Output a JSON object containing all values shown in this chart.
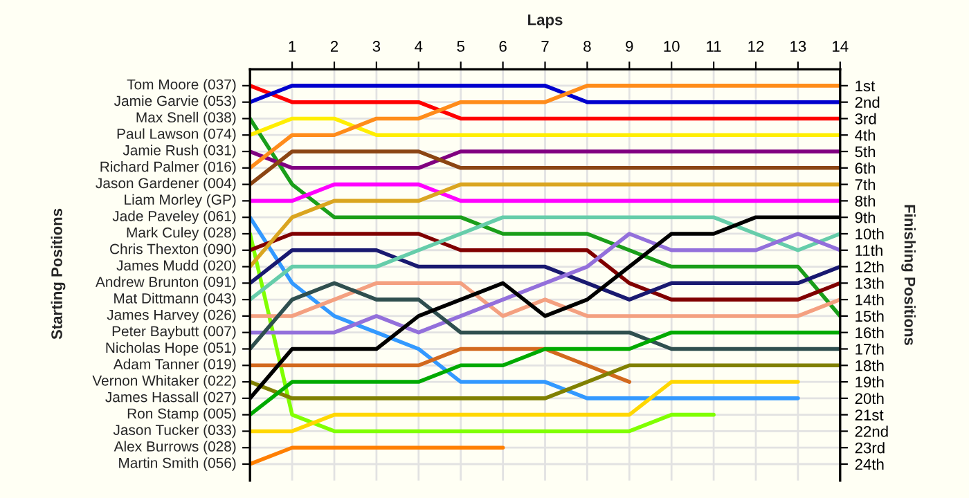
{
  "chart_data": {
    "type": "line",
    "xlabel": "Laps",
    "ylabel": "Finishing Positions",
    "x": [
      0,
      1,
      2,
      3,
      4,
      5,
      6,
      7,
      8,
      9,
      10,
      11,
      12,
      13,
      14
    ],
    "xlim": [
      0,
      14
    ],
    "xticks": [
      1,
      2,
      3,
      4,
      5,
      6,
      7,
      8,
      9,
      10,
      11,
      12,
      13,
      14
    ],
    "ylim": [
      25,
      0
    ],
    "yticks": [
      {
        "value": 1,
        "label": "1st"
      },
      {
        "value": 2,
        "label": "2nd"
      },
      {
        "value": 3,
        "label": "3rd"
      },
      {
        "value": 4,
        "label": "4th"
      },
      {
        "value": 5,
        "label": "5th"
      },
      {
        "value": 6,
        "label": "6th"
      },
      {
        "value": 7,
        "label": "7th"
      },
      {
        "value": 8,
        "label": "8th"
      },
      {
        "value": 9,
        "label": "9th"
      },
      {
        "value": 10,
        "label": "10th"
      },
      {
        "value": 11,
        "label": "11th"
      },
      {
        "value": 12,
        "label": "12th"
      },
      {
        "value": 13,
        "label": "13th"
      },
      {
        "value": 14,
        "label": "14th"
      },
      {
        "value": 15,
        "label": "15th"
      },
      {
        "value": 16,
        "label": "16th"
      },
      {
        "value": 17,
        "label": "17th"
      },
      {
        "value": 18,
        "label": "18th"
      },
      {
        "value": 19,
        "label": "19th"
      },
      {
        "value": 20,
        "label": "20th"
      },
      {
        "value": 21,
        "label": "21st"
      },
      {
        "value": 22,
        "label": "22nd"
      },
      {
        "value": 23,
        "label": "23rd"
      },
      {
        "value": 24,
        "label": "24th"
      }
    ],
    "annotations": [
      "Starting Positions",
      "Tom Moore (037)",
      "Jamie Garvie (053)",
      "Max Snell (038)",
      "Paul Lawson (074)",
      "Jamie Rush (031)",
      "Richard Palmer (016)",
      "Jason Gardener (004)",
      "Liam Morley (GP)",
      "Jade Paveley (061)",
      "Mark Culey (028)",
      "Chris Thexton (090)",
      "James Mudd (020)",
      "Andrew Brunton (091)",
      "Mat Dittmann (043)",
      "James Harvey (026)",
      "Peter Baybutt (007)",
      "Nicholas Hope (051)",
      "Adam Tanner (019)",
      "Vernon Whitaker (022)",
      "James Hassall (027)",
      "Ron Stamp (005)",
      "Jason Tucker (033)",
      "Alex Burrows (028)",
      "Martin Smith (056)"
    ],
    "grid": true,
    "series": [
      {
        "color": "#ff0000",
        "values": [
          1,
          2,
          2,
          2,
          2,
          3,
          3,
          3,
          3,
          3,
          3,
          3,
          3,
          3,
          3
        ]
      },
      {
        "color": "#0000cd",
        "values": [
          2,
          1,
          1,
          1,
          1,
          1,
          1,
          1,
          2,
          2,
          2,
          2,
          2,
          2,
          2
        ]
      },
      {
        "color": "#1a9e1a",
        "values": [
          3,
          7,
          9,
          9,
          9,
          9,
          10,
          10,
          10,
          11,
          12,
          12,
          12,
          12,
          15
        ]
      },
      {
        "color": "#ffee00",
        "values": [
          4,
          3,
          3,
          4,
          4,
          4,
          4,
          4,
          4,
          4,
          4,
          4,
          4,
          4,
          4
        ]
      },
      {
        "color": "#800080",
        "values": [
          5,
          6,
          6,
          6,
          6,
          5,
          5,
          5,
          5,
          5,
          5,
          5,
          5,
          5,
          5
        ]
      },
      {
        "color": "#ff8c1a",
        "values": [
          6,
          4,
          4,
          3,
          3,
          2,
          2,
          2,
          1,
          1,
          1,
          1,
          1,
          1,
          1
        ]
      },
      {
        "color": "#8b4513",
        "values": [
          7,
          5,
          5,
          5,
          5,
          6,
          6,
          6,
          6,
          6,
          6,
          6,
          6,
          6,
          6
        ]
      },
      {
        "color": "#ff00ff",
        "values": [
          8,
          8,
          7,
          7,
          7,
          8,
          8,
          8,
          8,
          8,
          8,
          8,
          8,
          8,
          8
        ]
      },
      {
        "color": "#3399ff",
        "values": [
          9,
          13,
          15,
          16,
          17,
          19,
          19,
          19,
          20,
          20,
          20,
          20,
          20,
          20,
          null
        ]
      },
      {
        "color": "#80ff00",
        "values": [
          10,
          21,
          22,
          22,
          22,
          22,
          22,
          22,
          22,
          22,
          21,
          21,
          null,
          null,
          null
        ]
      },
      {
        "color": "#800000",
        "values": [
          11,
          10,
          10,
          10,
          10,
          11,
          11,
          11,
          11,
          13,
          14,
          14,
          14,
          14,
          13
        ]
      },
      {
        "color": "#daa520",
        "values": [
          12,
          9,
          8,
          8,
          8,
          7,
          7,
          7,
          7,
          7,
          7,
          7,
          7,
          7,
          7
        ]
      },
      {
        "color": "#191970",
        "values": [
          13,
          11,
          11,
          11,
          12,
          12,
          12,
          12,
          13,
          14,
          13,
          13,
          13,
          13,
          12
        ]
      },
      {
        "color": "#66cdaa",
        "values": [
          14,
          12,
          12,
          12,
          11,
          10,
          9,
          9,
          9,
          9,
          9,
          9,
          10,
          11,
          10
        ]
      },
      {
        "color": "#f4a080",
        "values": [
          15,
          15,
          14,
          13,
          13,
          13,
          15,
          14,
          15,
          15,
          15,
          15,
          15,
          15,
          14
        ]
      },
      {
        "color": "#9370db",
        "values": [
          16,
          16,
          16,
          15,
          16,
          15,
          14,
          13,
          12,
          10,
          11,
          11,
          11,
          10,
          11
        ]
      },
      {
        "color": "#2f4f4f",
        "values": [
          17,
          14,
          13,
          14,
          14,
          16,
          16,
          16,
          16,
          16,
          17,
          17,
          17,
          17,
          17
        ]
      },
      {
        "color": "#d2691e",
        "values": [
          18,
          18,
          18,
          18,
          18,
          17,
          17,
          17,
          18,
          19,
          null,
          null,
          null,
          null,
          null
        ]
      },
      {
        "color": "#808000",
        "values": [
          19,
          20,
          20,
          20,
          20,
          20,
          20,
          20,
          19,
          18,
          18,
          18,
          18,
          18,
          18
        ]
      },
      {
        "color": "#000000",
        "values": [
          20,
          17,
          17,
          17,
          15,
          14,
          13,
          15,
          14,
          12,
          10,
          10,
          9,
          9,
          9
        ]
      },
      {
        "color": "#00aa00",
        "values": [
          21,
          19,
          19,
          19,
          19,
          18,
          18,
          17,
          17,
          17,
          16,
          16,
          16,
          16,
          16
        ]
      },
      {
        "color": "#ffd700",
        "values": [
          22,
          22,
          21,
          21,
          21,
          21,
          21,
          21,
          21,
          21,
          19,
          19,
          19,
          19,
          null
        ]
      },
      {
        "color": "#ff7f00",
        "values": [
          24,
          23,
          23,
          23,
          23,
          23,
          23,
          null,
          null,
          null,
          null,
          null,
          null,
          null,
          null
        ]
      }
    ]
  }
}
